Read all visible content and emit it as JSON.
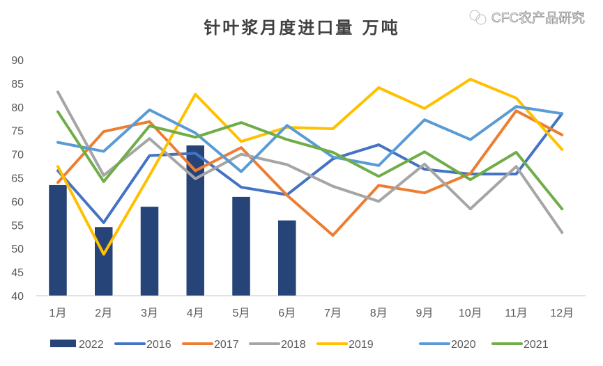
{
  "chart_data": {
    "type": "bar+line",
    "title": "针叶浆月度进口量 万吨",
    "xlabel": "",
    "ylabel": "",
    "categories": [
      "1月",
      "2月",
      "3月",
      "4月",
      "5月",
      "6月",
      "7月",
      "8月",
      "9月",
      "10月",
      "11月",
      "12月"
    ],
    "ylim": [
      40,
      90
    ],
    "yticks": [
      40,
      45,
      50,
      55,
      60,
      65,
      70,
      75,
      80,
      85,
      90
    ],
    "grid": false,
    "legend_position": "bottom",
    "series": [
      {
        "name": "2022",
        "kind": "bar",
        "color": "#264478",
        "values": [
          63.5,
          54.6,
          58.9,
          71.9,
          61.0,
          56.0,
          null,
          null,
          null,
          null,
          null,
          null
        ]
      },
      {
        "name": "2016",
        "kind": "line",
        "color": "#4472C4",
        "values": [
          66.5,
          55.5,
          69.7,
          70.2,
          63.0,
          61.4,
          69.0,
          72.0,
          66.8,
          65.8,
          65.8,
          78.6
        ]
      },
      {
        "name": "2017",
        "kind": "line",
        "color": "#ED7D31",
        "values": [
          64.0,
          74.8,
          76.9,
          66.5,
          71.4,
          61.3,
          52.8,
          63.4,
          61.8,
          65.9,
          79.2,
          74.1
        ]
      },
      {
        "name": "2018",
        "kind": "line",
        "color": "#A5A5A5",
        "values": [
          83.2,
          65.5,
          73.3,
          64.8,
          70.0,
          67.8,
          63.2,
          60.0,
          67.9,
          58.4,
          67.4,
          53.4
        ]
      },
      {
        "name": "2019",
        "kind": "line",
        "color": "#FFC000",
        "values": [
          67.4,
          48.8,
          65.5,
          82.7,
          72.7,
          75.7,
          75.4,
          84.1,
          79.7,
          85.9,
          81.9,
          71.0
        ]
      },
      {
        "name": "2020",
        "kind": "line",
        "color": "#5B9BD5",
        "values": [
          72.5,
          70.6,
          79.4,
          74.5,
          66.3,
          76.1,
          69.4,
          67.6,
          77.3,
          73.1,
          80.1,
          78.6
        ]
      },
      {
        "name": "2021",
        "kind": "line",
        "color": "#70AD47",
        "values": [
          79.0,
          64.2,
          76.0,
          73.6,
          76.7,
          73.1,
          70.4,
          65.3,
          70.5,
          64.6,
          70.4,
          58.4
        ]
      }
    ]
  },
  "watermark": "CFC农产品研究"
}
